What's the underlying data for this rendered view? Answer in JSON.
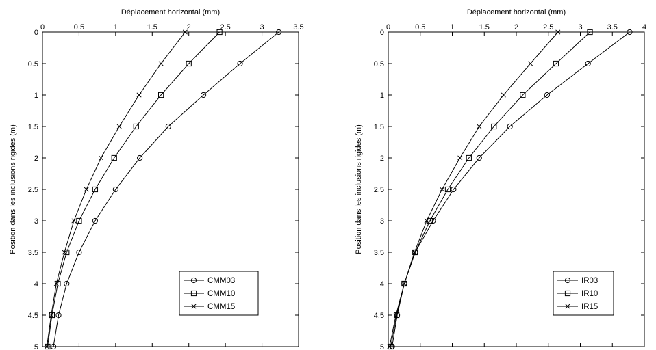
{
  "chart_data": [
    {
      "type": "line",
      "xlabel": "Déplacement horizontal (mm)",
      "ylabel": "Position dans les inclusions rigides (m)",
      "xlim": [
        0,
        3.5
      ],
      "ylim": [
        0,
        5
      ],
      "y_reversed": true,
      "x_ticks": [
        "0",
        "0.5",
        "1",
        "1.5",
        "2",
        "2.5",
        "3",
        "3.5"
      ],
      "y_ticks": [
        "0",
        "0.5",
        "1",
        "1.5",
        "2",
        "2.5",
        "3",
        "3.5",
        "4",
        "4.5",
        "5"
      ],
      "legend_position": "bottom-right",
      "grid": false,
      "series": [
        {
          "name": "CMM03",
          "marker": "circle",
          "x": [
            3.23,
            2.7,
            2.2,
            1.72,
            1.33,
            1.0,
            0.72,
            0.5,
            0.33,
            0.22,
            0.15
          ],
          "y": [
            0,
            0.5,
            1,
            1.5,
            2,
            2.5,
            3,
            3.5,
            4,
            4.5,
            5
          ]
        },
        {
          "name": "CMM10",
          "marker": "square",
          "x": [
            2.42,
            2.0,
            1.62,
            1.28,
            0.98,
            0.72,
            0.5,
            0.33,
            0.21,
            0.13,
            0.07
          ],
          "y": [
            0,
            0.5,
            1,
            1.5,
            2,
            2.5,
            3,
            3.5,
            4,
            4.5,
            5
          ]
        },
        {
          "name": "CMM15",
          "marker": "x",
          "x": [
            1.95,
            1.62,
            1.32,
            1.05,
            0.8,
            0.6,
            0.43,
            0.3,
            0.19,
            0.12,
            0.06
          ],
          "y": [
            0,
            0.5,
            1,
            1.5,
            2,
            2.5,
            3,
            3.5,
            4,
            4.5,
            5
          ]
        }
      ]
    },
    {
      "type": "line",
      "xlabel": "Déplacement horizontal (mm)",
      "ylabel": "Position dans les inclusions rigides (m)",
      "xlim": [
        0,
        4
      ],
      "ylim": [
        0,
        5
      ],
      "y_reversed": true,
      "x_ticks": [
        "0",
        "0.5",
        "1",
        "1.5",
        "2",
        "2.5",
        "3",
        "3.5",
        "4"
      ],
      "y_ticks": [
        "0",
        "0.5",
        "1",
        "1.5",
        "2",
        "2.5",
        "3",
        "3.5",
        "4",
        "4.5",
        "5"
      ],
      "legend_position": "bottom-right",
      "grid": false,
      "series": [
        {
          "name": "IR03",
          "marker": "circle",
          "x": [
            3.77,
            3.12,
            2.48,
            1.9,
            1.42,
            1.02,
            0.7,
            0.42,
            0.25,
            0.14,
            0.06
          ],
          "y": [
            0,
            0.5,
            1,
            1.5,
            2,
            2.5,
            3,
            3.5,
            4,
            4.5,
            5
          ]
        },
        {
          "name": "IR10",
          "marker": "square",
          "x": [
            3.15,
            2.62,
            2.1,
            1.65,
            1.26,
            0.93,
            0.65,
            0.42,
            0.25,
            0.13,
            0.04
          ],
          "y": [
            0,
            0.5,
            1,
            1.5,
            2,
            2.5,
            3,
            3.5,
            4,
            4.5,
            5
          ]
        },
        {
          "name": "IR15",
          "marker": "x",
          "x": [
            2.65,
            2.22,
            1.8,
            1.42,
            1.12,
            0.84,
            0.6,
            0.41,
            0.25,
            0.12,
            0.02
          ],
          "y": [
            0,
            0.5,
            1,
            1.5,
            2,
            2.5,
            3,
            3.5,
            4,
            4.5,
            5
          ]
        }
      ]
    }
  ]
}
